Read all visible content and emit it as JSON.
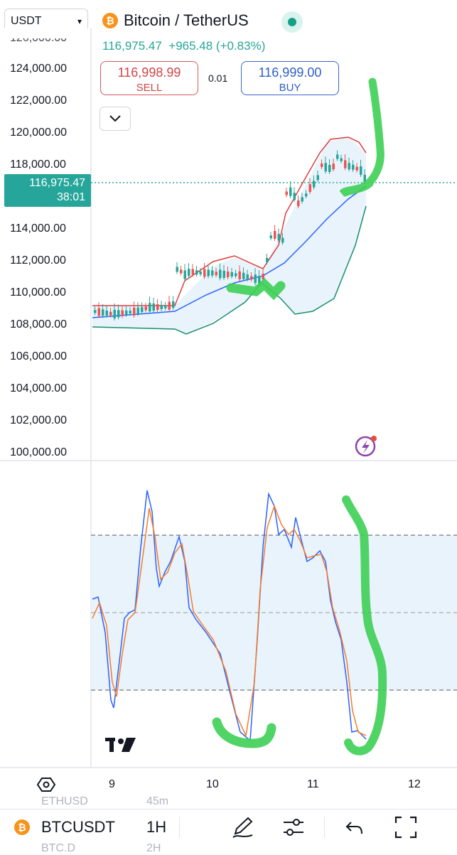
{
  "header": {
    "symbol_selector": "USDT",
    "pair_name": "Bitcoin / TetherUS",
    "price_line": "116,975.47  +965.48 (+0.83%)"
  },
  "trade": {
    "sell_price": "116,998.99",
    "sell_label": "SELL",
    "quantity": "0.01",
    "buy_price": "116,999.00",
    "buy_label": "BUY"
  },
  "price_tag": {
    "price": "116,975.47",
    "countdown": "38:01"
  },
  "chart_data": {
    "type": "candlestick",
    "y_axis_labels": [
      "124,000.00",
      "122,000.00",
      "120,000.00",
      "118,000.00",
      "114,000.00",
      "112,000.00",
      "110,000.00",
      "108,000.00",
      "106,000.00",
      "104,000.00",
      "102,000.00",
      "100,000.00"
    ],
    "x_axis_labels": [
      "9",
      "10",
      "11",
      "12"
    ],
    "ylim": [
      100000,
      124000
    ],
    "indicators": [
      "Bollinger Bands",
      "Stochastic RSI"
    ],
    "last_price": 116975.47,
    "colors": {
      "up": "#26a69a",
      "down": "#ef5350",
      "basis": "#2962ff",
      "upper": "#e03b3b",
      "lower": "#168f6a",
      "band_fill": "#e9f3fc",
      "highlight": "#3ecf55"
    }
  },
  "bottom_bar": {
    "symbol": "BTCUSDT",
    "interval": "1H",
    "behind_symbol": "ETHUSD",
    "behind_interval": "45m",
    "behind_symbol2": "BTC.D",
    "behind_interval2": "2H"
  },
  "icons": [
    "bitcoin-icon",
    "settings-icon",
    "draw-icon",
    "indicators-icon",
    "undo-icon",
    "fullscreen-icon",
    "lightning-icon",
    "tradingview-logo"
  ]
}
